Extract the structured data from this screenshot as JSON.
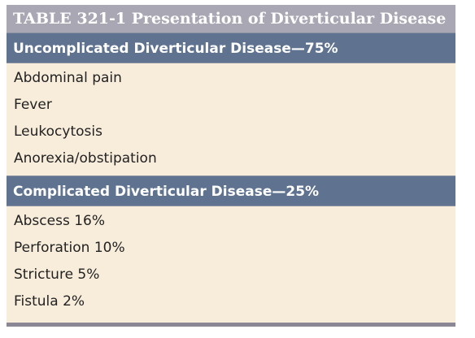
{
  "table": {
    "title": "TABLE 321-1  Presentation of Diverticular Disease",
    "sections": [
      {
        "header": "Uncomplicated Diverticular Disease—75%",
        "items": [
          "Abdominal pain",
          "Fever",
          "Leukocytosis",
          "Anorexia/obstipation"
        ]
      },
      {
        "header": "Complicated Diverticular Disease—25%",
        "items": [
          "Abscess 16%",
          "Perforation 10%",
          "Stricture 5%",
          "Fistula 2%"
        ]
      }
    ]
  },
  "colors": {
    "title_bar": "#aaa7b4",
    "section_header": "#5f7390",
    "body_background": "#f8ecdb",
    "bottom_rule": "#8c8795"
  }
}
